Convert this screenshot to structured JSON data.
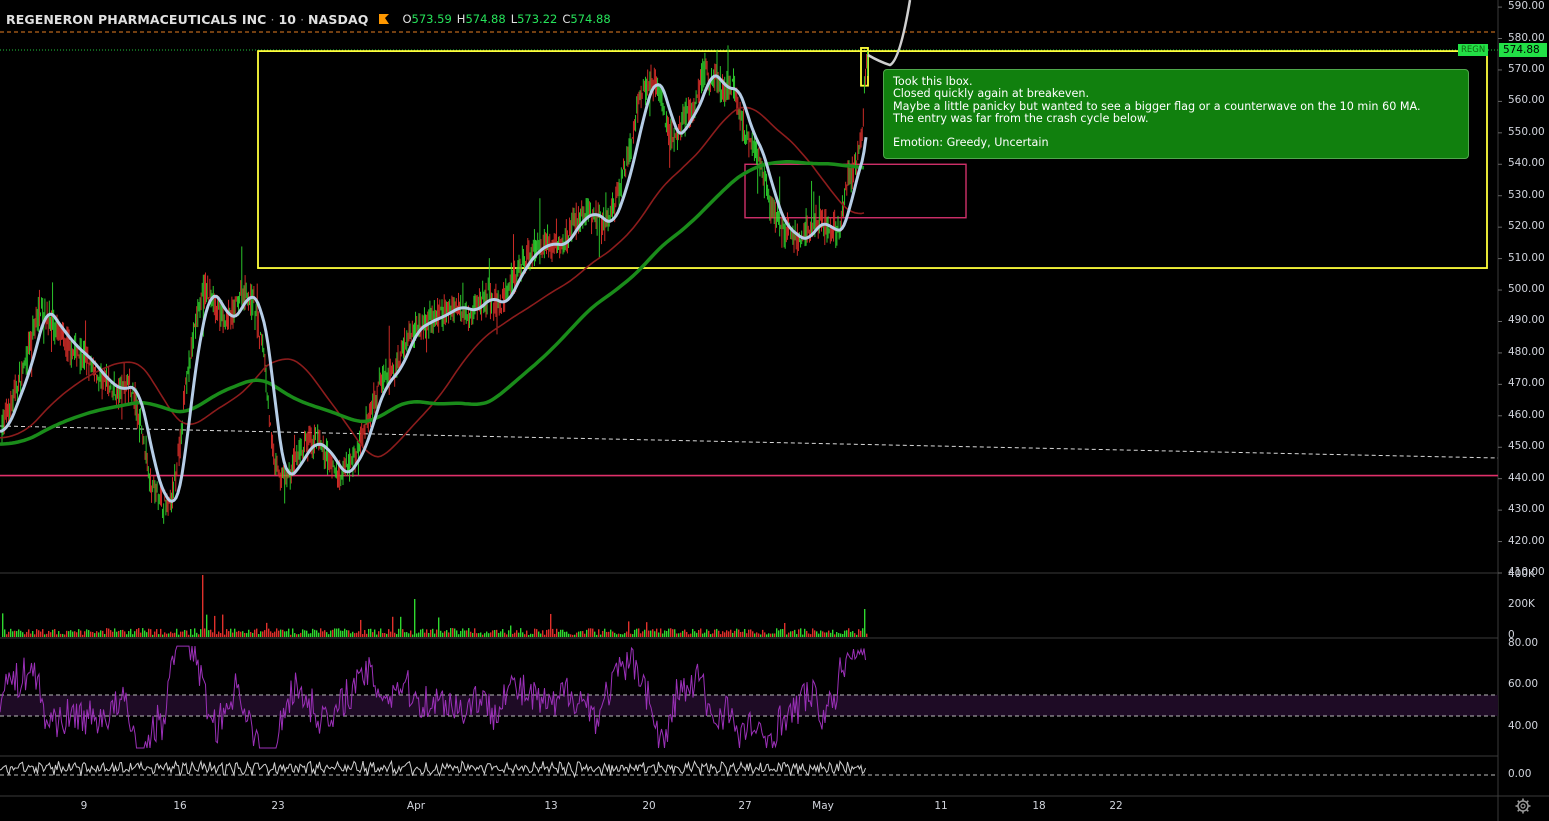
{
  "header": {
    "symbol_name": "REGENERON PHARMACEUTICALS INC",
    "interval": "10",
    "exchange": "NASDAQ",
    "open_label": "O",
    "open_value": "573.59",
    "high_label": "H",
    "high_value": "574.88",
    "low_label": "L",
    "low_value": "573.22",
    "close_label": "C",
    "close_value": "574.88"
  },
  "price_tag": {
    "symbol": "REGN",
    "value": "574.88"
  },
  "annotation": {
    "lines": [
      "Took this lbox.",
      "Closed quickly again at breakeven.",
      "Maybe a little panicky but wanted to see a bigger flag or a counterwave on the 10 min 60 MA.",
      "The entry was far from the crash cycle below.",
      "",
      "Emotion: Greedy, Uncertain"
    ]
  },
  "colors": {
    "background": "#000000",
    "up_candle": "#2fd82f",
    "down_candle": "#e0302b",
    "fast_ma": "#b6cde6",
    "slow_ma": "#1a8c1a",
    "red_ma": "#8c1c1c",
    "box_yellow": "#ffff3b",
    "box_pink": "#d0306a",
    "support_line": "#e0306a",
    "rsi_line": "#9b30b8",
    "osc_line": "#d0d0d0",
    "annotation_bg": "#11800e"
  },
  "chart_data": [
    {
      "type": "line",
      "name": "price",
      "x": [
        "9",
        "16",
        "23",
        "Apr",
        "13",
        "20",
        "27",
        "May",
        "11",
        "18",
        "22"
      ],
      "price_path": {
        "x": [
          0,
          12,
          24,
          40,
          55,
          70,
          85,
          100,
          115,
          130,
          142,
          150,
          158,
          168,
          176,
          186,
          196,
          204,
          214,
          224,
          234,
          244,
          254,
          264,
          272,
          280,
          290,
          300,
          310,
          320,
          330,
          340,
          350,
          360,
          370,
          380,
          395,
          410,
          425,
          440,
          455,
          470,
          485,
          500,
          515,
          530,
          545,
          560,
          575,
          590,
          605,
          618,
          630,
          640,
          650,
          660,
          668,
          676,
          684,
          694,
          704,
          714,
          724,
          734,
          744,
          752,
          760,
          770,
          780,
          790,
          800,
          810,
          820,
          830,
          840,
          848,
          855,
          862,
          866
        ],
        "y": [
          455,
          465,
          475,
          495,
          488,
          482,
          478,
          472,
          468,
          470,
          455,
          440,
          435,
          430,
          440,
          470,
          490,
          500,
          497,
          490,
          493,
          500,
          495,
          480,
          450,
          440,
          442,
          448,
          452,
          450,
          446,
          440,
          445,
          450,
          462,
          470,
          475,
          487,
          490,
          492,
          495,
          493,
          498,
          495,
          505,
          512,
          515,
          514,
          522,
          525,
          520,
          530,
          545,
          560,
          568,
          562,
          550,
          548,
          555,
          558,
          570,
          567,
          563,
          565,
          550,
          548,
          540,
          528,
          520,
          518,
          515,
          520,
          522,
          518,
          520,
          535,
          540,
          548,
          573
        ]
      },
      "series": [
        {
          "name": "fast_ma"
        },
        {
          "name": "slow_ma"
        },
        {
          "name": "red_ma"
        }
      ],
      "horizontal_lines": [
        441
      ],
      "boxes": [
        {
          "x_range": [
            258,
            1487
          ],
          "y_range": [
            507,
            576
          ],
          "color": "yellow"
        },
        {
          "x_range": [
            745,
            966
          ],
          "y_range": [
            523,
            540
          ],
          "color": "pink"
        },
        {
          "x_range": [
            861,
            868
          ],
          "y_range": [
            565,
            577
          ],
          "color": "yellow"
        }
      ],
      "y_ticks": [
        410,
        420,
        430,
        440,
        450,
        460,
        470,
        480,
        490,
        500,
        510,
        520,
        530,
        540,
        550,
        560,
        570,
        580,
        590
      ],
      "y_tick_labels": [
        "410.00",
        "420.00",
        "430.00",
        "440.00",
        "450.00",
        "460.00",
        "470.00",
        "480.00",
        "490.00",
        "500.00",
        "510.00",
        "520.00",
        "530.00",
        "540.00",
        "550.00",
        "560.00",
        "570.00",
        "580.00",
        "590.00"
      ],
      "ylim": [
        408.5,
        590.5
      ]
    },
    {
      "type": "bar",
      "name": "volume",
      "y_tick_labels": [
        "400K",
        "200K",
        "0"
      ],
      "ylim": [
        0,
        400000
      ]
    },
    {
      "type": "line",
      "name": "rsi",
      "y_tick_labels": [
        "80.00",
        "60.00",
        "40.00"
      ],
      "bands": [
        45,
        55
      ],
      "ylim": [
        30,
        80
      ]
    },
    {
      "type": "line",
      "name": "oscillator",
      "y_tick_labels": [
        "0.00"
      ]
    }
  ]
}
